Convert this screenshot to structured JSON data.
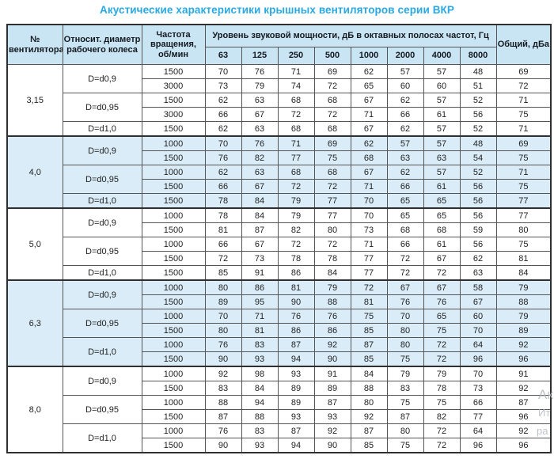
{
  "title": "Акустические характеристики крышных вентиляторов серии ВКР",
  "colors": {
    "title_accent": "#29a9e1",
    "header_bg": "#c9e5f4",
    "shaded_row_bg": "#d9ecf8",
    "border": "#555555"
  },
  "watermark": {
    "fragments": [
      "Ак",
      "Ит",
      "ра"
    ]
  },
  "table": {
    "headers": {
      "fan_no": "№ вентилятора",
      "diameter": "Относит. диаметр рабочего колеса",
      "speed": "Частота вращения, об/мин",
      "spl_group": "Уровень звуковой мощности, дБ в октавных полосах частот, Гц",
      "frequencies": [
        "63",
        "125",
        "250",
        "500",
        "1000",
        "2000",
        "4000",
        "8000"
      ],
      "total": "Общий, дБа"
    },
    "groups": [
      {
        "fan": "3,15",
        "shaded": false,
        "subs": [
          {
            "d": "D=d0,9",
            "rows": [
              {
                "speed": "1500",
                "vals": [
                  "70",
                  "76",
                  "71",
                  "69",
                  "62",
                  "57",
                  "57",
                  "48"
                ],
                "total": "69"
              },
              {
                "speed": "3000",
                "vals": [
                  "73",
                  "79",
                  "74",
                  "72",
                  "65",
                  "60",
                  "60",
                  "51"
                ],
                "total": "72"
              }
            ]
          },
          {
            "d": "D=d0,95",
            "rows": [
              {
                "speed": "1500",
                "vals": [
                  "62",
                  "63",
                  "68",
                  "68",
                  "67",
                  "62",
                  "57",
                  "52"
                ],
                "total": "71"
              },
              {
                "speed": "3000",
                "vals": [
                  "66",
                  "67",
                  "72",
                  "72",
                  "71",
                  "66",
                  "61",
                  "56"
                ],
                "total": "75"
              }
            ]
          },
          {
            "d": "D=d1,0",
            "rows": [
              {
                "speed": "1500",
                "vals": [
                  "62",
                  "63",
                  "68",
                  "68",
                  "67",
                  "62",
                  "57",
                  "52"
                ],
                "total": "71"
              }
            ]
          }
        ]
      },
      {
        "fan": "4,0",
        "shaded": true,
        "subs": [
          {
            "d": "D=d0,9",
            "rows": [
              {
                "speed": "1000",
                "vals": [
                  "70",
                  "76",
                  "71",
                  "69",
                  "62",
                  "57",
                  "57",
                  "48"
                ],
                "total": "69"
              },
              {
                "speed": "1500",
                "vals": [
                  "76",
                  "82",
                  "77",
                  "75",
                  "68",
                  "63",
                  "63",
                  "54"
                ],
                "total": "75"
              }
            ]
          },
          {
            "d": "D=d0,95",
            "rows": [
              {
                "speed": "1000",
                "vals": [
                  "62",
                  "63",
                  "68",
                  "68",
                  "67",
                  "62",
                  "57",
                  "52"
                ],
                "total": "71"
              },
              {
                "speed": "1500",
                "vals": [
                  "66",
                  "67",
                  "72",
                  "72",
                  "71",
                  "66",
                  "61",
                  "56"
                ],
                "total": "75"
              }
            ]
          },
          {
            "d": "D=d1,0",
            "rows": [
              {
                "speed": "1500",
                "vals": [
                  "78",
                  "84",
                  "79",
                  "77",
                  "70",
                  "65",
                  "65",
                  "56"
                ],
                "total": "77"
              }
            ]
          }
        ]
      },
      {
        "fan": "5,0",
        "shaded": false,
        "subs": [
          {
            "d": "D=d0,9",
            "rows": [
              {
                "speed": "1000",
                "vals": [
                  "78",
                  "84",
                  "79",
                  "77",
                  "70",
                  "65",
                  "65",
                  "56"
                ],
                "total": "77"
              },
              {
                "speed": "1500",
                "vals": [
                  "81",
                  "87",
                  "82",
                  "80",
                  "73",
                  "68",
                  "68",
                  "59"
                ],
                "total": "80"
              }
            ]
          },
          {
            "d": "D=d0,95",
            "rows": [
              {
                "speed": "1000",
                "vals": [
                  "66",
                  "67",
                  "72",
                  "72",
                  "71",
                  "66",
                  "61",
                  "56"
                ],
                "total": "75"
              },
              {
                "speed": "1500",
                "vals": [
                  "72",
                  "73",
                  "78",
                  "78",
                  "77",
                  "72",
                  "67",
                  "62"
                ],
                "total": "81"
              }
            ]
          },
          {
            "d": "D=d1,0",
            "rows": [
              {
                "speed": "1500",
                "vals": [
                  "85",
                  "91",
                  "86",
                  "84",
                  "77",
                  "72",
                  "72",
                  "63"
                ],
                "total": "84"
              }
            ]
          }
        ]
      },
      {
        "fan": "6,3",
        "shaded": true,
        "subs": [
          {
            "d": "D=d0,9",
            "rows": [
              {
                "speed": "1000",
                "vals": [
                  "80",
                  "86",
                  "81",
                  "79",
                  "72",
                  "67",
                  "67",
                  "58"
                ],
                "total": "79"
              },
              {
                "speed": "1500",
                "vals": [
                  "89",
                  "95",
                  "90",
                  "88",
                  "81",
                  "76",
                  "76",
                  "67"
                ],
                "total": "88"
              }
            ]
          },
          {
            "d": "D=d0,95",
            "rows": [
              {
                "speed": "1000",
                "vals": [
                  "70",
                  "71",
                  "76",
                  "76",
                  "75",
                  "70",
                  "65",
                  "60"
                ],
                "total": "79"
              },
              {
                "speed": "1500",
                "vals": [
                  "80",
                  "81",
                  "86",
                  "86",
                  "85",
                  "80",
                  "75",
                  "70"
                ],
                "total": "89"
              }
            ]
          },
          {
            "d": "D=d1,0",
            "rows": [
              {
                "speed": "1000",
                "vals": [
                  "76",
                  "83",
                  "87",
                  "92",
                  "87",
                  "80",
                  "72",
                  "64"
                ],
                "total": "92"
              },
              {
                "speed": "1500",
                "vals": [
                  "90",
                  "93",
                  "94",
                  "90",
                  "85",
                  "75",
                  "72",
                  "96"
                ],
                "total": "96"
              }
            ]
          }
        ]
      },
      {
        "fan": "8,0",
        "shaded": false,
        "subs": [
          {
            "d": "D=d0,9",
            "rows": [
              {
                "speed": "1000",
                "vals": [
                  "92",
                  "98",
                  "93",
                  "91",
                  "84",
                  "79",
                  "79",
                  "70"
                ],
                "total": "91"
              },
              {
                "speed": "1500",
                "vals": [
                  "83",
                  "84",
                  "89",
                  "89",
                  "88",
                  "83",
                  "78",
                  "73"
                ],
                "total": "92"
              }
            ]
          },
          {
            "d": "D=d0,95",
            "rows": [
              {
                "speed": "1000",
                "vals": [
                  "88",
                  "94",
                  "89",
                  "87",
                  "80",
                  "75",
                  "75",
                  "66"
                ],
                "total": "87"
              },
              {
                "speed": "1500",
                "vals": [
                  "87",
                  "88",
                  "93",
                  "93",
                  "92",
                  "87",
                  "82",
                  "77"
                ],
                "total": "96"
              }
            ]
          },
          {
            "d": "D=d1,0",
            "rows": [
              {
                "speed": "1000",
                "vals": [
                  "76",
                  "83",
                  "87",
                  "92",
                  "87",
                  "80",
                  "72",
                  "64"
                ],
                "total": "92"
              },
              {
                "speed": "1500",
                "vals": [
                  "90",
                  "93",
                  "94",
                  "90",
                  "85",
                  "75",
                  "72",
                  "96"
                ],
                "total": "96"
              }
            ]
          }
        ]
      }
    ]
  }
}
